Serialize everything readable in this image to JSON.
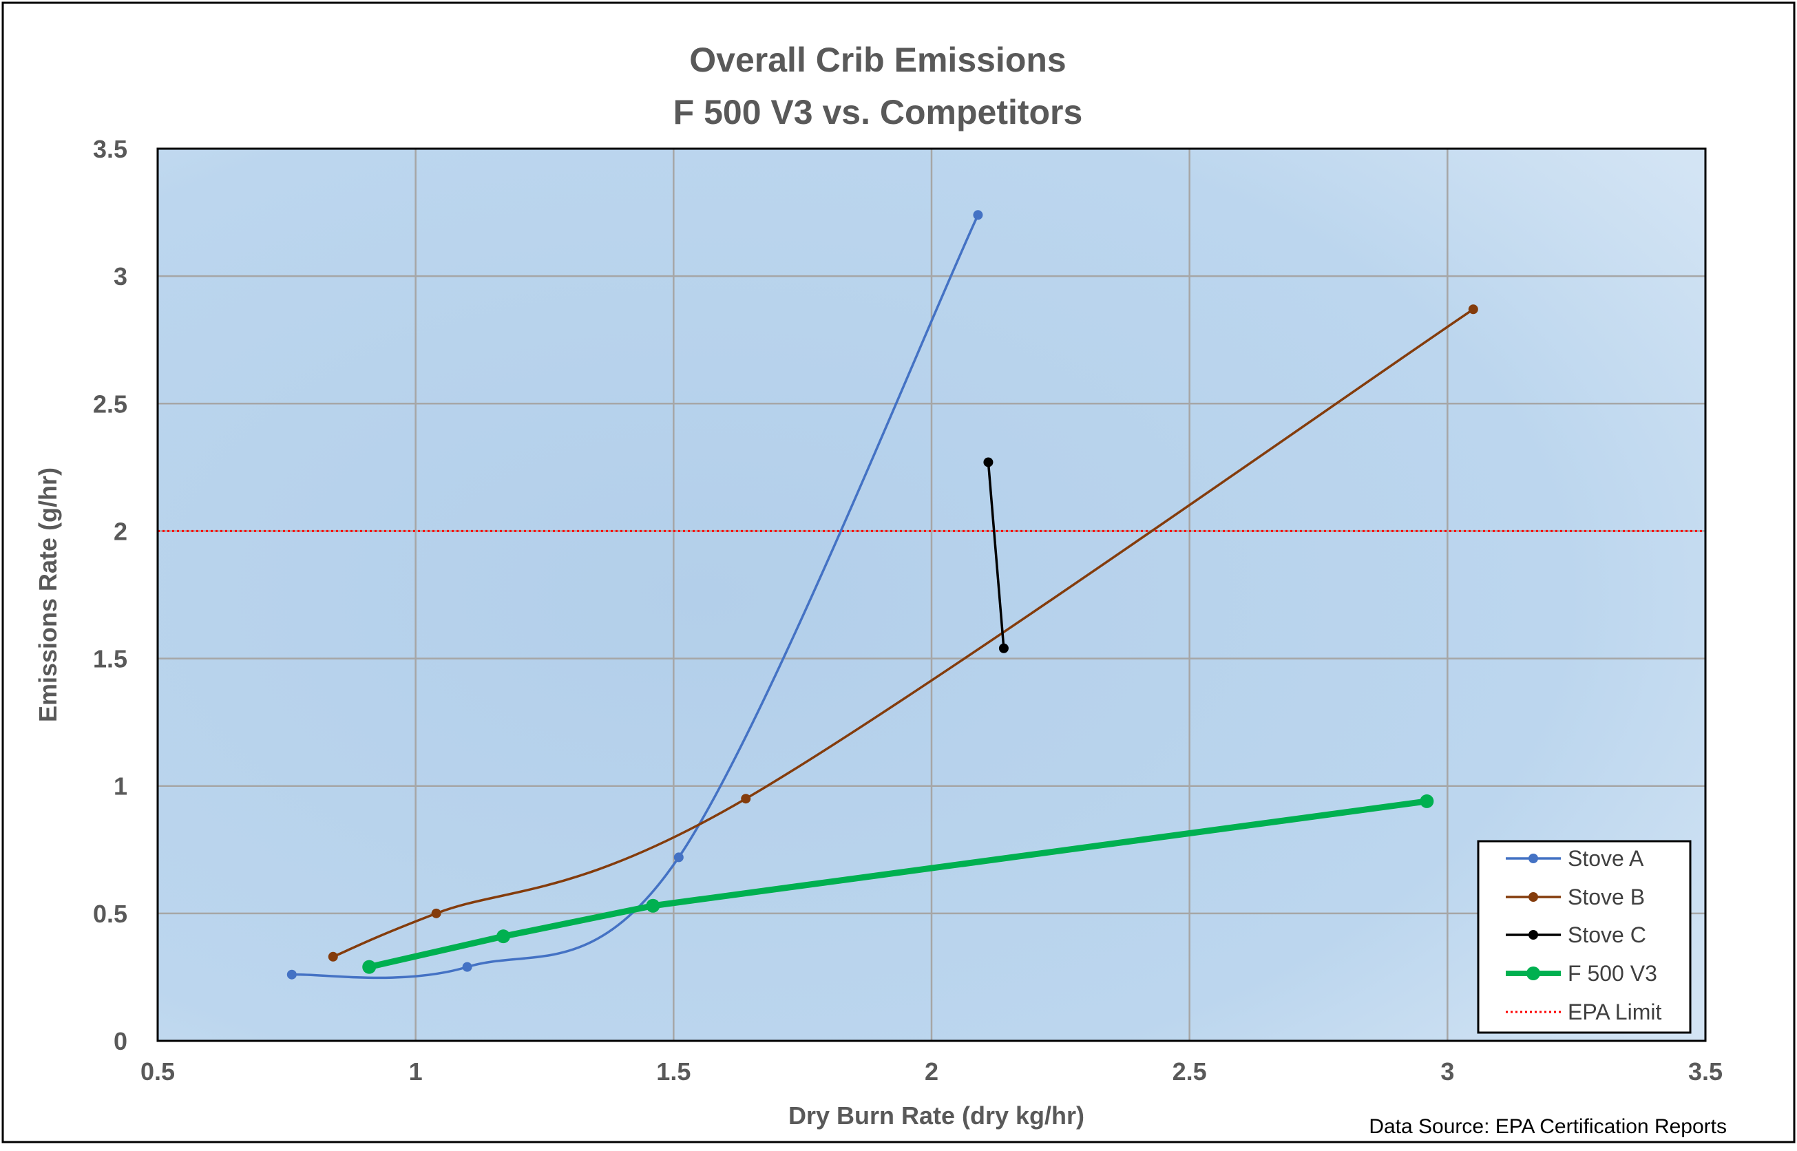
{
  "chart_data": {
    "type": "line",
    "title": "Overall Crib Emissions",
    "subtitle": "F 500 V3 vs. Competitors",
    "xlabel": "Dry Burn Rate (dry kg/hr)",
    "ylabel": "Emissions Rate (g/hr)",
    "xlim": [
      0.5,
      3.5
    ],
    "ylim": [
      0,
      3.5
    ],
    "x_ticks": [
      "0.5",
      "1",
      "1.5",
      "2",
      "2.5",
      "3",
      "3.5"
    ],
    "y_ticks": [
      "0",
      "0.5",
      "1",
      "1.5",
      "2",
      "2.5",
      "3",
      "3.5"
    ],
    "grid": true,
    "legend_position": "bottom-right",
    "series": [
      {
        "name": "Stove A",
        "color": "#4472C4",
        "smooth": true,
        "points": [
          [
            0.76,
            0.26
          ],
          [
            1.1,
            0.29
          ],
          [
            1.51,
            0.72
          ],
          [
            2.09,
            3.24
          ]
        ]
      },
      {
        "name": "Stove B",
        "color": "#843C0C",
        "smooth": true,
        "points": [
          [
            0.84,
            0.33
          ],
          [
            1.04,
            0.5
          ],
          [
            1.64,
            0.95
          ],
          [
            3.05,
            2.87
          ]
        ]
      },
      {
        "name": "Stove C",
        "color": "#000000",
        "smooth": false,
        "points": [
          [
            2.11,
            2.27
          ],
          [
            2.14,
            1.54
          ]
        ]
      },
      {
        "name": "F 500 V3",
        "color": "#00B050",
        "smooth": false,
        "points": [
          [
            0.91,
            0.29
          ],
          [
            1.17,
            0.41
          ],
          [
            1.46,
            0.53
          ],
          [
            2.96,
            0.94
          ]
        ]
      }
    ],
    "reference_lines": [
      {
        "name": "EPA Limit",
        "y": 2,
        "color": "#FF0000",
        "style": "dotted"
      }
    ],
    "annotation": "Data Source: EPA Certification Reports"
  }
}
